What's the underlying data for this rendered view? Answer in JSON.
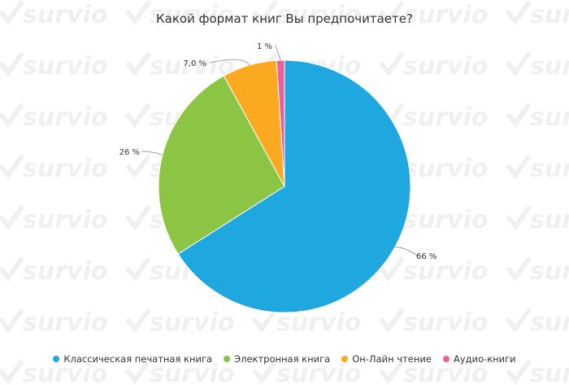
{
  "chart_data": {
    "type": "pie",
    "title": "Какой формат книг Вы предпочитаете?",
    "slices": [
      {
        "name": "Классическая печатная книга",
        "value": 66,
        "label": "66 %",
        "color": "#1fa8e0"
      },
      {
        "name": "Электронная книга",
        "value": 26,
        "label": "26 %",
        "color": "#8bc543"
      },
      {
        "name": "Он-Лайн чтение",
        "value": 7.0,
        "label": "7,0 %",
        "color": "#faa921"
      },
      {
        "name": "Аудио-книги",
        "value": 1,
        "label": "1 %",
        "color": "#e8609a"
      }
    ],
    "legend_position": "bottom",
    "grid": false
  },
  "watermark": {
    "text": "survio",
    "icon": "check-icon",
    "color": "#f0f0f0"
  }
}
